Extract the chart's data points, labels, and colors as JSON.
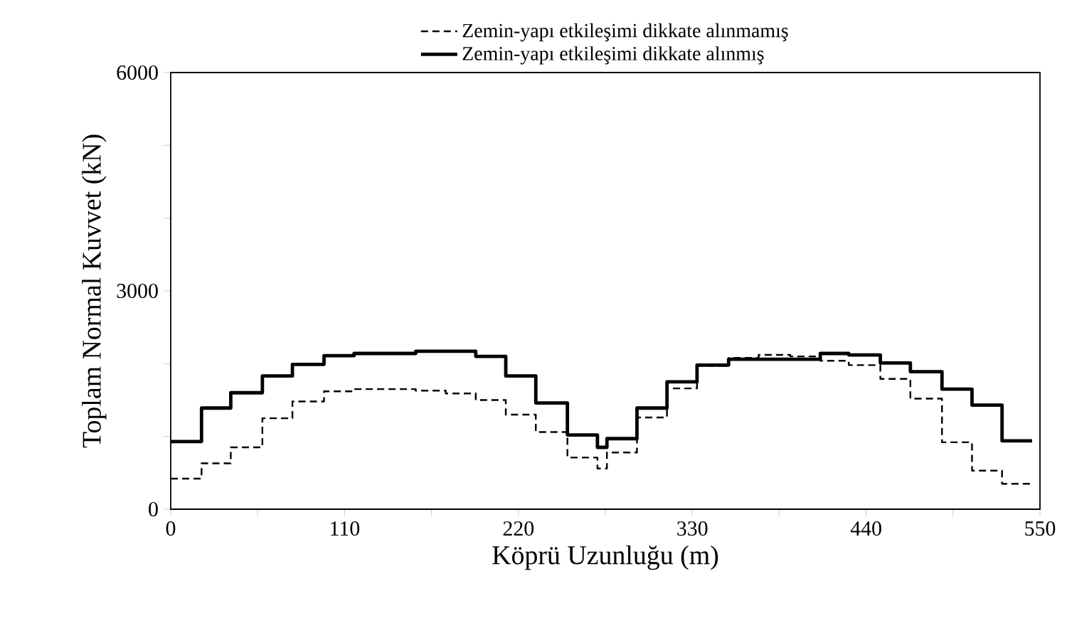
{
  "chart_data": {
    "type": "step",
    "xlabel": "Köprü Uzunluğu (m)",
    "ylabel": "Toplam Normal Kuvvet (kN)",
    "xlim": [
      0,
      550
    ],
    "ylim": [
      0,
      6000
    ],
    "xticks": [
      0,
      {
        "value": 55,
        "label": null
      },
      110,
      {
        "value": 165,
        "label": null
      },
      220,
      {
        "value": 275,
        "label": null
      },
      330,
      {
        "value": 385,
        "label": null
      },
      440,
      {
        "value": 495,
        "label": null
      },
      550
    ],
    "yticks": [
      0,
      {
        "value": 1000,
        "label": null
      },
      {
        "value": 2000,
        "label": null
      },
      3000,
      {
        "value": 4000,
        "label": null
      },
      {
        "value": 5000,
        "label": null
      },
      6000
    ],
    "legend": "top",
    "marker": "none",
    "series": [
      {
        "name": "Zemin-yapı etkileşimi dikkate alınmamış",
        "color": "#000000",
        "line_style": "dashed",
        "x": [
          0,
          19.5,
          38,
          58,
          77,
          97,
          116,
          155,
          174,
          193,
          212,
          231,
          251,
          270,
          276,
          295,
          314,
          333,
          353,
          372,
          392,
          411,
          429,
          449,
          468,
          488,
          507,
          526,
          545
        ],
        "values": [
          420,
          630,
          850,
          1250,
          1480,
          1620,
          1650,
          1630,
          1590,
          1500,
          1300,
          1060,
          710,
          560,
          780,
          1260,
          1660,
          1970,
          2080,
          2120,
          2100,
          2040,
          1980,
          1790,
          1520,
          920,
          530,
          350,
          350
        ]
      },
      {
        "name": "Zemin-yapı etkileşimi dikkate alınmış",
        "color": "#000000",
        "line_style": "solid",
        "x": [
          0,
          19.5,
          38,
          58,
          77,
          97,
          116,
          155,
          193,
          212,
          231,
          251,
          270,
          276,
          295,
          314,
          333,
          353,
          411,
          429,
          449,
          468,
          488,
          507,
          526,
          545
        ],
        "values": [
          930,
          1390,
          1600,
          1830,
          1990,
          2110,
          2140,
          2170,
          2100,
          1830,
          1460,
          1020,
          850,
          970,
          1390,
          1750,
          1980,
          2060,
          2140,
          2120,
          2010,
          1890,
          1650,
          1430,
          940,
          940
        ]
      }
    ]
  }
}
